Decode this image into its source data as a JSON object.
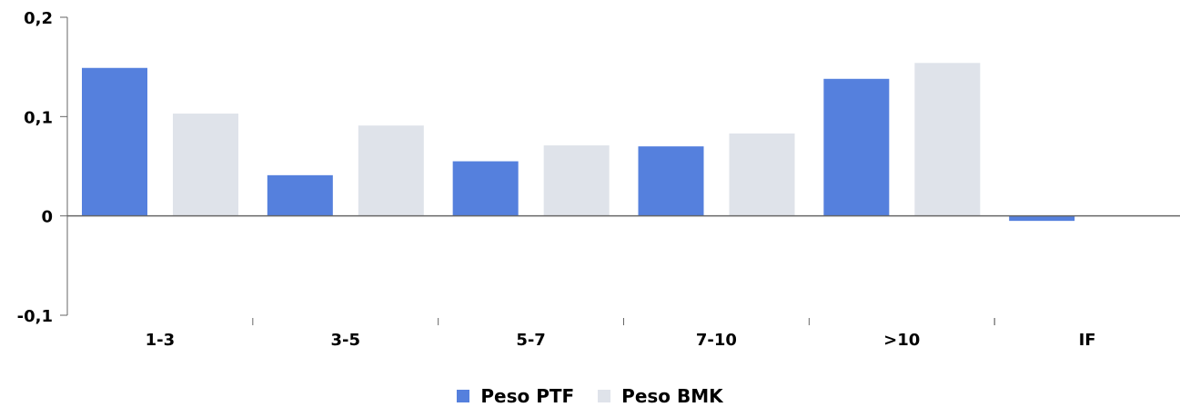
{
  "chart_data": {
    "type": "bar",
    "categories": [
      "1-3",
      "3-5",
      "5-7",
      "7-10",
      ">10",
      "IF"
    ],
    "series": [
      {
        "name": "Peso PTF",
        "color": "#5580DD",
        "values": [
          0.149,
          0.041,
          0.055,
          0.07,
          0.138,
          -0.005
        ]
      },
      {
        "name": "Peso BMK",
        "color": "#DFE3EA",
        "values": [
          0.103,
          0.091,
          0.071,
          0.083,
          0.154,
          0.0
        ]
      }
    ],
    "ylim": [
      -0.1,
      0.2
    ],
    "yticks": [
      "-0,1",
      "0",
      "0,1",
      "0,2"
    ],
    "ytick_values": [
      -0.1,
      0,
      0.1,
      0.2
    ],
    "legend_position": "bottom-center",
    "grid": false
  }
}
